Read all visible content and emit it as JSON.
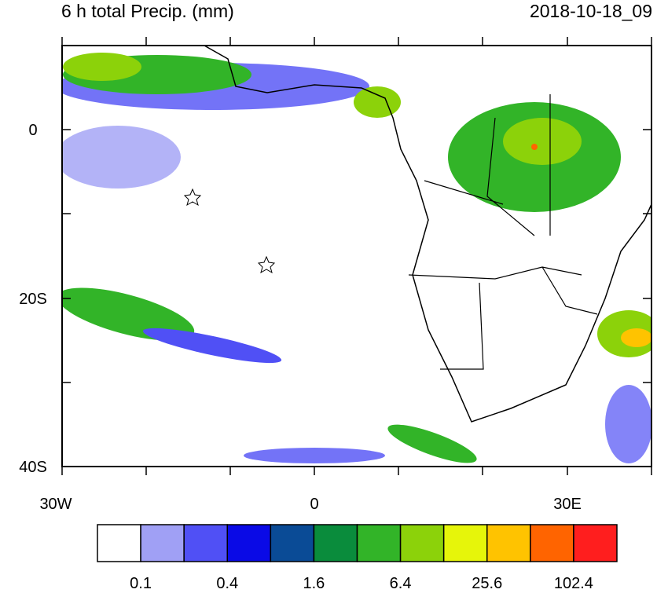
{
  "header": {
    "title": "6 h total Precip. (mm)",
    "date": "2018-10-18_09"
  },
  "map": {
    "y_labels": [
      "0",
      "20S",
      "40S"
    ],
    "x_labels": [
      "30W",
      "0",
      "30E"
    ]
  },
  "colorbar": {
    "colors": [
      "#ffffff",
      "#a0a0f5",
      "#5050f5",
      "#0a0ae6",
      "#0a4b96",
      "#0a8c3c",
      "#32b428",
      "#8cd20a",
      "#e6f50a",
      "#ffc300",
      "#ff6400",
      "#ff1e1e"
    ],
    "labels": [
      "0.1",
      "0.4",
      "1.6",
      "6.4",
      "25.6",
      "102.4"
    ]
  }
}
